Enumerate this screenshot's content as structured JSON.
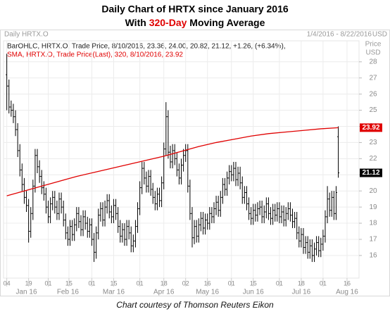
{
  "chart_data": {
    "type": "ohlc",
    "title": "Daily Chart of HRTX since January 2016",
    "subtitle_parts": [
      "With",
      "320-Day",
      "Moving Average"
    ],
    "instrument_label": "Daily HRTX.O",
    "date_range": "1/4/2016 - 8/22/2016",
    "header_unit": "USD",
    "y_axis_label": "Price",
    "y_axis_unit": "USD",
    "source": "Chart courtesy of Thomson Reuters Eikon",
    "grid": true,
    "xlim": [
      -1.5,
      161.5
    ],
    "ylim": [
      14.6,
      29.3
    ],
    "yticks": [
      16,
      17,
      18,
      19,
      20,
      21,
      22,
      23,
      24,
      25,
      26,
      27,
      28
    ],
    "xticks": [
      {
        "value": 0,
        "label": "04"
      },
      {
        "value": 10,
        "label": "19"
      },
      {
        "value": 19,
        "label": "01"
      },
      {
        "value": 28.5,
        "label": "15"
      },
      {
        "value": 39,
        "label": "01"
      },
      {
        "value": 49,
        "label": "15"
      },
      {
        "value": 61,
        "label": "01"
      },
      {
        "value": 72,
        "label": "18"
      },
      {
        "value": 82,
        "label": "02"
      },
      {
        "value": 92,
        "label": "16"
      },
      {
        "value": 103,
        "label": "01"
      },
      {
        "value": 113,
        "label": "15"
      },
      {
        "value": 125,
        "label": "01"
      },
      {
        "value": 135,
        "label": "18"
      },
      {
        "value": 145,
        "label": "01"
      },
      {
        "value": 156,
        "label": "16"
      }
    ],
    "month_labels": [
      {
        "value": 9,
        "label": "Jan 16"
      },
      {
        "value": 28,
        "label": "Feb 16"
      },
      {
        "value": 49,
        "label": "Mar 16"
      },
      {
        "value": 72,
        "label": "Apr 16"
      },
      {
        "value": 92,
        "label": "May 16"
      },
      {
        "value": 113,
        "label": "Jun 16"
      },
      {
        "value": 135,
        "label": "Jul 16"
      },
      {
        "value": 156,
        "label": "Aug 16"
      }
    ],
    "ohlc": {
      "legend": "BarOHLC, HRTX.O, Trade Price, 8/10/2016, 23.36, 24.00, 20.82, 21.12, +1.26, (+6.34%),",
      "color": "#000000",
      "x": [
        0,
        1,
        2,
        3,
        4,
        5,
        6,
        7,
        8,
        9,
        10,
        11,
        12,
        13,
        14,
        15,
        16,
        17,
        18,
        19,
        20,
        21,
        22,
        23,
        24,
        25,
        26,
        27,
        28,
        29,
        30,
        31,
        32,
        33,
        34,
        35,
        36,
        37,
        38,
        39,
        40,
        41,
        42,
        43,
        44,
        45,
        46,
        47,
        48,
        49,
        50,
        51,
        52,
        53,
        54,
        55,
        56,
        57,
        58,
        59,
        60,
        61,
        62,
        63,
        64,
        65,
        66,
        67,
        68,
        69,
        70,
        71,
        72,
        73,
        74,
        75,
        76,
        77,
        78,
        79,
        80,
        81,
        82,
        83,
        84,
        85,
        86,
        87,
        88,
        89,
        90,
        91,
        92,
        93,
        94,
        95,
        96,
        97,
        98,
        99,
        100,
        101,
        102,
        103,
        104,
        105,
        106,
        107,
        108,
        109,
        110,
        111,
        112,
        113,
        114,
        115,
        116,
        117,
        118,
        119,
        120,
        121,
        122,
        123,
        124,
        125,
        126,
        127,
        128,
        129,
        130,
        131,
        132,
        133,
        134,
        135,
        136,
        137,
        138,
        139,
        140,
        141,
        142,
        143,
        144,
        145,
        146,
        147,
        148,
        149,
        150,
        151,
        152
      ],
      "open": [
        27.2,
        26.5,
        25.2,
        25.0,
        24.6,
        23.8,
        22.5,
        21.3,
        20.4,
        19.6,
        19.1,
        17.5,
        18.6,
        20.3,
        22.2,
        21.5,
        20.9,
        20.2,
        19.8,
        19.0,
        18.4,
        19.2,
        19.6,
        19.0,
        18.6,
        19.5,
        19.0,
        18.2,
        17.4,
        17.0,
        17.8,
        17.3,
        17.9,
        18.6,
        18.1,
        17.6,
        18.4,
        18.0,
        17.5,
        17.9,
        17.0,
        16.2,
        17.4,
        18.5,
        18.9,
        18.2,
        19.0,
        19.4,
        18.7,
        18.4,
        19.1,
        18.6,
        17.8,
        17.2,
        17.6,
        17.0,
        17.8,
        17.4,
        16.6,
        16.9,
        17.8,
        18.9,
        20.2,
        21.4,
        20.8,
        20.3,
        20.9,
        20.1,
        19.6,
        19.2,
        19.8,
        19.4,
        20.5,
        22.6,
        24.6,
        22.4,
        21.8,
        22.5,
        22.0,
        21.3,
        20.8,
        21.6,
        22.2,
        22.5,
        20.3,
        18.6,
        17.1,
        17.8,
        17.2,
        17.9,
        18.3,
        17.7,
        18.2,
        18.0,
        18.6,
        18.4,
        18.9,
        19.3,
        18.8,
        19.6,
        20.4,
        20.1,
        20.8,
        21.2,
        21.0,
        21.4,
        20.7,
        21.1,
        20.5,
        19.6,
        19.9,
        19.2,
        18.6,
        18.3,
        18.8,
        18.5,
        18.9,
        19.0,
        18.4,
        18.7,
        19.2,
        18.6,
        18.3,
        18.8,
        18.5,
        18.9,
        18.4,
        18.7,
        18.2,
        18.6,
        18.9,
        18.5,
        18.1,
        18.3,
        17.4,
        16.9,
        17.3,
        16.5,
        16.8,
        16.2,
        16.6,
        16.0,
        16.4,
        16.8,
        16.3,
        16.7,
        17.2,
        18.4,
        19.5,
        18.8,
        19.6,
        18.6,
        23.36
      ],
      "high": [
        28.5,
        26.9,
        25.6,
        25.4,
        25.0,
        24.2,
        22.9,
        21.7,
        20.8,
        20.0,
        19.5,
        19.0,
        20.7,
        22.6,
        22.6,
        21.9,
        21.3,
        20.6,
        20.2,
        19.4,
        19.6,
        20.0,
        20.0,
        19.4,
        19.9,
        19.9,
        19.4,
        18.6,
        17.8,
        18.2,
        18.2,
        18.3,
        19.0,
        19.0,
        18.5,
        18.8,
        18.8,
        18.4,
        18.3,
        18.3,
        17.4,
        17.8,
        18.9,
        19.3,
        19.3,
        19.4,
        19.8,
        19.8,
        19.1,
        19.5,
        19.5,
        19.0,
        18.2,
        18.0,
        18.0,
        18.2,
        18.2,
        17.8,
        17.3,
        18.2,
        19.3,
        20.6,
        21.8,
        21.8,
        21.2,
        21.3,
        21.3,
        20.5,
        20.0,
        20.2,
        20.2,
        20.9,
        23.0,
        25.5,
        25.0,
        22.8,
        22.9,
        22.9,
        22.4,
        21.7,
        22.0,
        22.6,
        22.9,
        22.9,
        20.7,
        19.0,
        18.2,
        18.2,
        18.3,
        18.7,
        18.7,
        18.6,
        18.6,
        19.0,
        19.0,
        19.3,
        19.7,
        19.7,
        20.0,
        20.8,
        20.8,
        21.2,
        21.6,
        21.6,
        21.8,
        21.8,
        21.5,
        21.5,
        20.9,
        20.3,
        20.3,
        19.6,
        19.0,
        19.2,
        19.2,
        19.3,
        19.4,
        19.4,
        19.1,
        19.6,
        19.6,
        19.0,
        19.2,
        19.2,
        19.3,
        19.3,
        19.1,
        19.1,
        19.0,
        19.3,
        19.3,
        18.9,
        18.7,
        18.7,
        17.8,
        17.7,
        17.7,
        17.2,
        17.2,
        17.0,
        17.0,
        16.8,
        17.2,
        17.2,
        17.1,
        17.6,
        18.8,
        20.3,
        19.9,
        20.0,
        20.0,
        20.3,
        24.0
      ],
      "low": [
        25.0,
        24.8,
        24.6,
        24.2,
        23.4,
        22.1,
        20.9,
        20.0,
        19.2,
        18.7,
        16.8,
        17.1,
        18.2,
        19.9,
        21.1,
        20.5,
        19.8,
        19.4,
        18.6,
        18.0,
        18.0,
        18.8,
        18.6,
        18.2,
        18.2,
        18.6,
        17.8,
        17.0,
        16.6,
        16.6,
        16.9,
        16.9,
        17.5,
        17.7,
        17.2,
        17.2,
        17.6,
        17.1,
        17.1,
        16.6,
        15.6,
        15.8,
        17.0,
        18.1,
        17.8,
        17.8,
        18.6,
        18.3,
        18.0,
        18.0,
        18.2,
        17.4,
        16.8,
        16.8,
        16.6,
        16.6,
        17.0,
        16.2,
        16.2,
        16.5,
        17.4,
        18.5,
        19.8,
        20.4,
        19.9,
        19.9,
        19.7,
        19.2,
        18.8,
        18.8,
        19.0,
        19.0,
        20.1,
        22.2,
        22.0,
        21.4,
        21.4,
        21.6,
        20.9,
        20.4,
        20.4,
        21.2,
        21.8,
        19.9,
        18.2,
        16.5,
        16.7,
        16.8,
        16.8,
        17.5,
        17.3,
        17.3,
        17.6,
        17.6,
        18.0,
        18.0,
        18.5,
        18.4,
        18.4,
        19.2,
        19.7,
        19.7,
        20.4,
        20.6,
        20.6,
        20.3,
        20.3,
        20.1,
        19.2,
        19.2,
        18.8,
        18.2,
        17.9,
        17.9,
        18.1,
        18.1,
        18.5,
        18.0,
        18.0,
        18.3,
        18.2,
        17.9,
        17.9,
        18.1,
        18.1,
        18.0,
        18.0,
        17.8,
        17.8,
        18.2,
        18.1,
        17.7,
        17.7,
        17.0,
        16.5,
        16.5,
        16.1,
        16.1,
        15.8,
        15.8,
        15.6,
        15.6,
        16.0,
        15.9,
        15.9,
        16.3,
        16.8,
        18.0,
        18.4,
        18.4,
        18.2,
        18.2,
        20.82
      ],
      "close": [
        26.5,
        25.2,
        25.0,
        24.6,
        23.8,
        22.5,
        21.3,
        20.4,
        19.6,
        19.1,
        17.5,
        18.6,
        20.3,
        22.2,
        21.5,
        20.9,
        20.2,
        19.8,
        19.0,
        18.4,
        19.2,
        19.6,
        19.0,
        18.6,
        19.5,
        19.0,
        18.2,
        17.4,
        17.0,
        17.8,
        17.3,
        17.9,
        18.6,
        18.1,
        17.6,
        18.4,
        18.0,
        17.5,
        17.9,
        17.0,
        16.2,
        17.4,
        18.5,
        18.9,
        18.2,
        19.0,
        19.4,
        18.7,
        18.4,
        19.1,
        18.6,
        17.8,
        17.2,
        17.6,
        17.0,
        17.8,
        17.4,
        16.6,
        16.9,
        17.8,
        18.9,
        20.2,
        21.4,
        20.8,
        20.3,
        20.9,
        20.1,
        19.6,
        19.2,
        19.8,
        19.4,
        20.5,
        22.6,
        24.6,
        22.4,
        21.8,
        22.5,
        22.0,
        21.3,
        20.8,
        21.6,
        22.2,
        22.5,
        20.3,
        18.6,
        17.1,
        17.8,
        17.2,
        17.9,
        18.3,
        17.7,
        18.2,
        18.0,
        18.6,
        18.4,
        18.9,
        19.3,
        18.8,
        19.6,
        20.4,
        20.1,
        20.8,
        21.2,
        21.0,
        21.4,
        20.7,
        21.1,
        20.5,
        19.6,
        19.9,
        19.2,
        18.6,
        18.3,
        18.8,
        18.5,
        18.9,
        19.0,
        18.4,
        18.7,
        19.2,
        18.6,
        18.3,
        18.8,
        18.5,
        18.9,
        18.4,
        18.7,
        18.2,
        18.6,
        18.9,
        18.5,
        18.1,
        18.3,
        17.4,
        16.9,
        17.3,
        16.5,
        16.8,
        16.2,
        16.6,
        16.0,
        16.4,
        16.8,
        16.3,
        16.7,
        17.2,
        18.4,
        19.5,
        18.8,
        19.6,
        18.6,
        19.9,
        21.12
      ],
      "last_label_color": "#000000"
    },
    "sma": {
      "legend": "SMA, HRTX.O, Trade Price(Last),  320, 8/10/2016, 23.92",
      "color": "#e00000",
      "x": [
        0,
        8,
        16,
        24,
        32,
        40,
        48,
        56,
        64,
        72,
        80,
        88,
        96,
        104,
        112,
        120,
        128,
        136,
        144,
        152
      ],
      "values": [
        19.7,
        20.0,
        20.3,
        20.6,
        20.9,
        21.15,
        21.4,
        21.65,
        21.9,
        22.15,
        22.45,
        22.75,
        23.0,
        23.2,
        23.4,
        23.55,
        23.65,
        23.75,
        23.85,
        23.92
      ]
    }
  }
}
